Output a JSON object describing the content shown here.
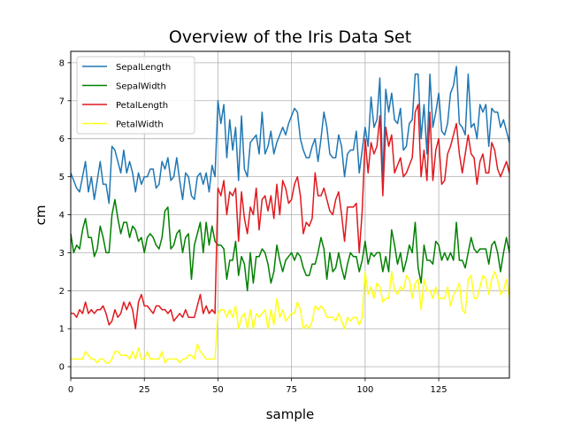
{
  "chart_data": {
    "type": "line",
    "title": "Overview of the Iris Data Set",
    "xlabel": "sample",
    "ylabel": "cm",
    "xlim": [
      0,
      149
    ],
    "ylim": [
      -0.3,
      8.3
    ],
    "xticks": [
      0,
      25,
      50,
      75,
      100,
      125
    ],
    "yticks": [
      0,
      1,
      2,
      3,
      4,
      5,
      6,
      7,
      8
    ],
    "grid": true,
    "legend_position": "upper-left",
    "series": [
      {
        "name": "SepalLength",
        "color": "#1f77b4",
        "values": [
          5.1,
          4.9,
          4.7,
          4.6,
          5.0,
          5.4,
          4.6,
          5.0,
          4.4,
          4.9,
          5.4,
          4.8,
          4.8,
          4.3,
          5.8,
          5.7,
          5.4,
          5.1,
          5.7,
          5.1,
          5.4,
          5.1,
          4.6,
          5.1,
          4.8,
          5.0,
          5.0,
          5.2,
          5.2,
          4.7,
          4.8,
          5.4,
          5.2,
          5.5,
          4.9,
          5.0,
          5.5,
          4.9,
          4.4,
          5.1,
          5.0,
          4.5,
          4.4,
          5.0,
          5.1,
          4.8,
          5.1,
          4.6,
          5.3,
          5.0,
          7.0,
          6.4,
          6.9,
          5.5,
          6.5,
          5.7,
          6.3,
          4.9,
          6.6,
          5.2,
          5.0,
          5.9,
          6.0,
          6.1,
          5.6,
          6.7,
          5.6,
          5.8,
          6.2,
          5.6,
          5.9,
          6.1,
          6.3,
          6.1,
          6.4,
          6.6,
          6.8,
          6.7,
          6.0,
          5.7,
          5.5,
          5.5,
          5.8,
          6.0,
          5.4,
          6.0,
          6.7,
          6.3,
          5.6,
          5.5,
          5.5,
          6.1,
          5.8,
          5.0,
          5.6,
          5.7,
          5.7,
          6.2,
          5.1,
          5.7,
          6.3,
          5.8,
          7.1,
          6.3,
          6.5,
          7.6,
          4.9,
          7.3,
          6.7,
          7.2,
          6.5,
          6.4,
          6.8,
          5.7,
          5.8,
          6.4,
          6.5,
          7.7,
          7.7,
          6.0,
          6.9,
          5.6,
          7.7,
          6.3,
          6.7,
          7.2,
          6.2,
          6.1,
          6.4,
          7.2,
          7.4,
          7.9,
          6.4,
          6.3,
          6.1,
          7.7,
          6.3,
          6.4,
          6.0,
          6.9,
          6.7,
          6.9,
          5.8,
          6.8,
          6.7,
          6.7,
          6.3,
          6.5,
          6.2,
          5.9
        ]
      },
      {
        "name": "SepalWidth",
        "color": "#008000",
        "values": [
          3.5,
          3.0,
          3.2,
          3.1,
          3.6,
          3.9,
          3.4,
          3.4,
          2.9,
          3.1,
          3.7,
          3.4,
          3.0,
          3.0,
          4.0,
          4.4,
          3.9,
          3.5,
          3.8,
          3.8,
          3.4,
          3.7,
          3.6,
          3.3,
          3.4,
          3.0,
          3.4,
          3.5,
          3.4,
          3.2,
          3.1,
          3.4,
          4.1,
          4.2,
          3.1,
          3.2,
          3.5,
          3.6,
          3.0,
          3.4,
          3.5,
          2.3,
          3.2,
          3.5,
          3.8,
          3.0,
          3.8,
          3.2,
          3.7,
          3.3,
          3.2,
          3.2,
          3.1,
          2.3,
          2.8,
          2.8,
          3.3,
          2.4,
          2.9,
          2.7,
          2.0,
          3.0,
          2.2,
          2.9,
          2.9,
          3.1,
          3.0,
          2.7,
          2.2,
          2.5,
          3.2,
          2.8,
          2.5,
          2.8,
          2.9,
          3.0,
          2.8,
          3.0,
          2.9,
          2.6,
          2.4,
          2.4,
          2.7,
          2.7,
          3.0,
          3.4,
          3.1,
          2.3,
          3.0,
          2.5,
          2.6,
          3.0,
          2.6,
          2.3,
          2.7,
          3.0,
          2.9,
          2.9,
          2.5,
          2.8,
          3.3,
          2.7,
          3.0,
          2.9,
          3.0,
          3.0,
          2.5,
          2.9,
          2.5,
          3.6,
          3.2,
          2.7,
          3.0,
          2.5,
          2.8,
          3.2,
          3.0,
          3.8,
          2.6,
          2.2,
          3.2,
          2.8,
          2.8,
          2.7,
          3.3,
          3.2,
          2.8,
          3.0,
          2.8,
          3.0,
          2.8,
          3.8,
          2.8,
          2.8,
          2.6,
          3.0,
          3.4,
          3.1,
          3.0,
          3.1,
          3.1,
          3.1,
          2.7,
          3.2,
          3.3,
          3.0,
          2.5,
          3.0,
          3.4,
          3.0
        ]
      },
      {
        "name": "PetalLength",
        "color": "#e0191e",
        "values": [
          1.4,
          1.4,
          1.3,
          1.5,
          1.4,
          1.7,
          1.4,
          1.5,
          1.4,
          1.5,
          1.5,
          1.6,
          1.4,
          1.1,
          1.2,
          1.5,
          1.3,
          1.4,
          1.7,
          1.5,
          1.7,
          1.5,
          1.0,
          1.7,
          1.9,
          1.6,
          1.6,
          1.5,
          1.4,
          1.6,
          1.6,
          1.5,
          1.5,
          1.4,
          1.5,
          1.2,
          1.3,
          1.4,
          1.3,
          1.5,
          1.3,
          1.3,
          1.3,
          1.6,
          1.9,
          1.4,
          1.6,
          1.4,
          1.5,
          1.4,
          4.7,
          4.5,
          4.9,
          4.0,
          4.6,
          4.5,
          4.7,
          3.3,
          4.6,
          3.9,
          3.5,
          4.2,
          4.0,
          4.7,
          3.6,
          4.4,
          4.5,
          4.1,
          4.5,
          3.9,
          4.8,
          4.0,
          4.9,
          4.7,
          4.3,
          4.4,
          4.8,
          5.0,
          4.5,
          3.5,
          3.8,
          3.7,
          3.9,
          5.1,
          4.5,
          4.5,
          4.7,
          4.4,
          4.1,
          4.0,
          4.4,
          4.6,
          4.0,
          3.3,
          4.2,
          4.2,
          4.2,
          4.3,
          3.0,
          4.1,
          6.0,
          5.1,
          5.9,
          5.6,
          5.8,
          6.6,
          4.5,
          6.3,
          5.8,
          6.1,
          5.1,
          5.3,
          5.5,
          5.0,
          5.1,
          5.3,
          5.5,
          6.7,
          6.9,
          5.0,
          5.7,
          4.9,
          6.7,
          4.9,
          5.7,
          6.0,
          4.8,
          4.9,
          5.6,
          5.8,
          6.1,
          6.4,
          5.6,
          5.1,
          5.6,
          6.1,
          5.6,
          5.5,
          4.8,
          5.4,
          5.6,
          5.1,
          5.1,
          5.9,
          5.7,
          5.2,
          5.0,
          5.2,
          5.4,
          5.1
        ]
      },
      {
        "name": "PetalWidth",
        "color": "#ffff1a",
        "values": [
          0.2,
          0.2,
          0.2,
          0.2,
          0.2,
          0.4,
          0.3,
          0.2,
          0.2,
          0.1,
          0.2,
          0.2,
          0.1,
          0.1,
          0.2,
          0.4,
          0.4,
          0.3,
          0.3,
          0.3,
          0.2,
          0.4,
          0.2,
          0.5,
          0.2,
          0.2,
          0.4,
          0.2,
          0.2,
          0.2,
          0.2,
          0.4,
          0.1,
          0.2,
          0.2,
          0.2,
          0.2,
          0.1,
          0.2,
          0.2,
          0.3,
          0.3,
          0.2,
          0.6,
          0.4,
          0.3,
          0.2,
          0.2,
          0.2,
          0.2,
          1.4,
          1.5,
          1.5,
          1.3,
          1.5,
          1.3,
          1.6,
          1.0,
          1.3,
          1.4,
          1.0,
          1.5,
          1.0,
          1.4,
          1.3,
          1.4,
          1.5,
          1.0,
          1.5,
          1.1,
          1.8,
          1.3,
          1.5,
          1.2,
          1.3,
          1.4,
          1.4,
          1.7,
          1.5,
          1.0,
          1.1,
          1.0,
          1.2,
          1.6,
          1.5,
          1.6,
          1.5,
          1.3,
          1.3,
          1.3,
          1.2,
          1.4,
          1.2,
          1.0,
          1.3,
          1.2,
          1.3,
          1.3,
          1.1,
          1.3,
          2.5,
          1.9,
          2.1,
          1.8,
          2.2,
          2.1,
          1.7,
          1.8,
          1.8,
          2.5,
          2.0,
          1.9,
          2.1,
          2.0,
          2.4,
          2.3,
          1.8,
          2.2,
          2.3,
          1.5,
          2.3,
          2.0,
          2.0,
          1.8,
          2.1,
          1.8,
          1.8,
          1.8,
          2.1,
          1.6,
          1.9,
          2.0,
          2.2,
          1.5,
          1.4,
          2.3,
          2.4,
          1.8,
          1.8,
          2.1,
          2.4,
          2.3,
          1.9,
          2.3,
          2.5,
          2.3,
          1.9,
          2.0,
          2.3,
          1.8
        ]
      }
    ]
  }
}
